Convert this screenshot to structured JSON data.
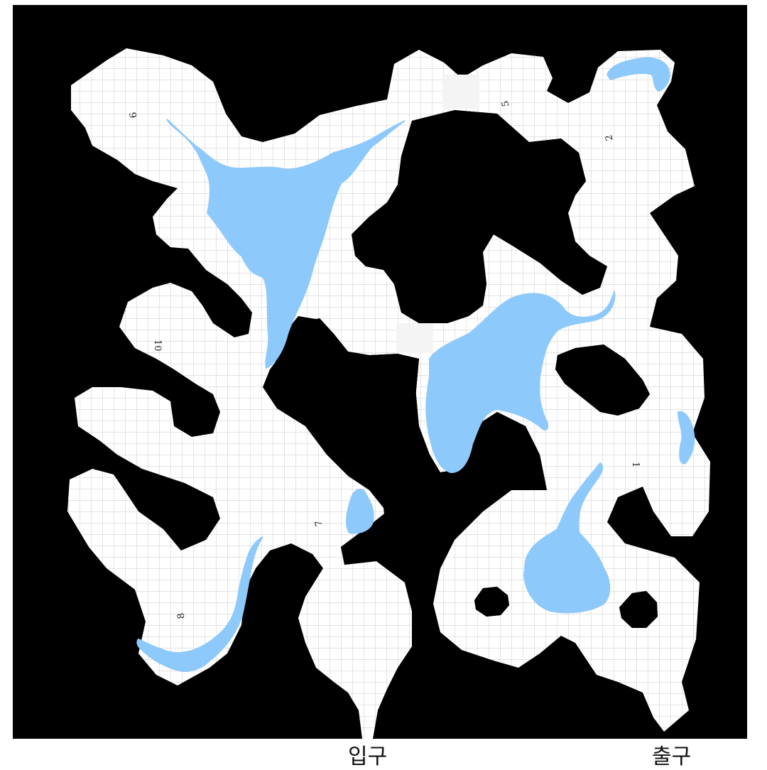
{
  "map": {
    "colors": {
      "rock": "#000000",
      "floor": "#ffffff",
      "grid": "#c8c8c8",
      "water": "#8ec9fb",
      "door": "#f4f4f4"
    },
    "rooms": [
      "1",
      "2",
      "5",
      "6",
      "7",
      "8",
      "10"
    ],
    "labels": {
      "entrance": "입구",
      "exit": "출구"
    }
  }
}
